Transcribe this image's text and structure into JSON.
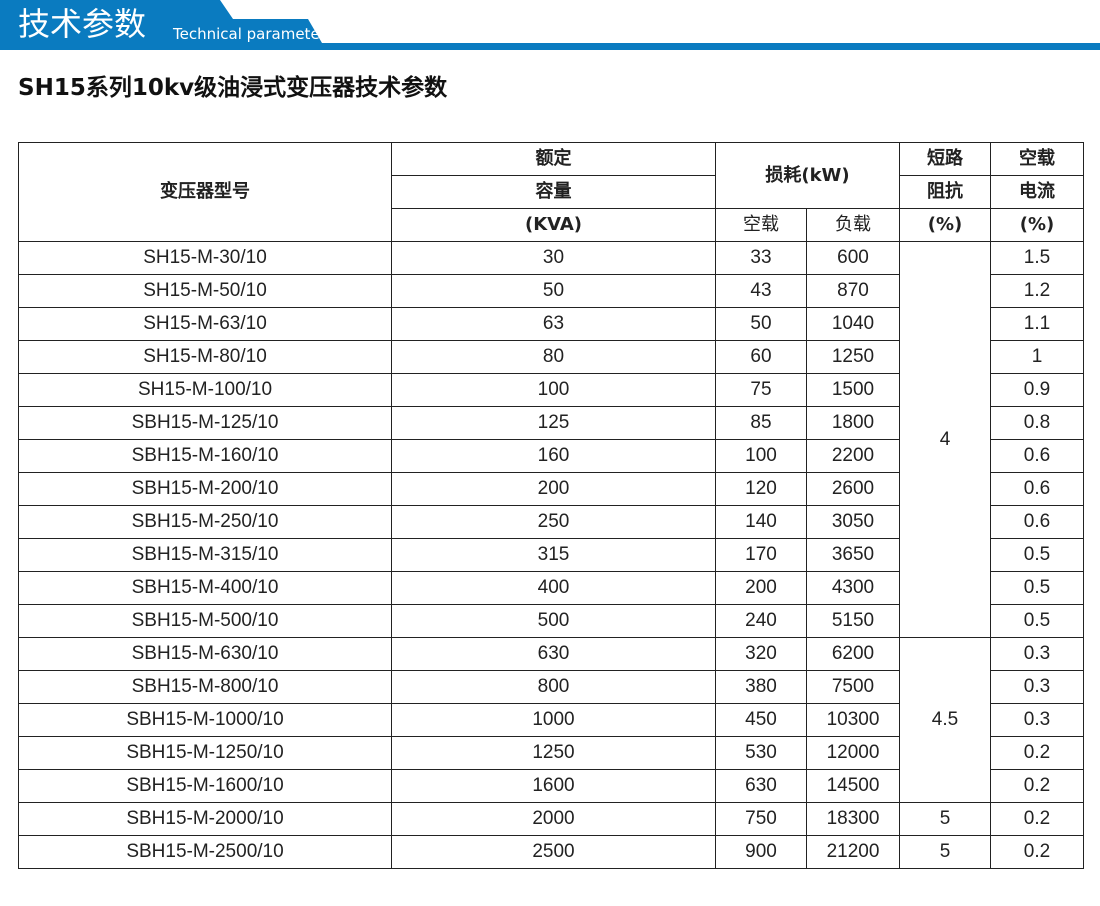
{
  "banner": {
    "title": "技术参数",
    "subtitle": "Technical parameter",
    "color": "#0a7bc0"
  },
  "doc_title": "SH15系列10kv级油浸式变压器技术参数",
  "table": {
    "headers": {
      "model": "变压器型号",
      "capacity_1": "额定",
      "capacity_2": "容量",
      "capacity_3": "(KVA)",
      "loss": "损耗(kW)",
      "loss_noload": "空载",
      "loss_load": "负载",
      "impedance_1": "短路",
      "impedance_2": "阻抗",
      "impedance_3": "(%)",
      "current_1": "空载",
      "current_2": "电流",
      "current_3": "(%)"
    },
    "rows": [
      [
        "SH15-M-30/10",
        "30",
        "33",
        "600",
        "1.5"
      ],
      [
        "SH15-M-50/10",
        "50",
        "43",
        "870",
        "1.2"
      ],
      [
        "SH15-M-63/10",
        "63",
        "50",
        "1040",
        "1.1"
      ],
      [
        "SH15-M-80/10",
        "80",
        "60",
        "1250",
        "1"
      ],
      [
        "SH15-M-100/10",
        "100",
        "75",
        "1500",
        "0.9"
      ],
      [
        "SBH15-M-125/10",
        "125",
        "85",
        "1800",
        "0.8"
      ],
      [
        "SBH15-M-160/10",
        "160",
        "100",
        "2200",
        "0.6"
      ],
      [
        "SBH15-M-200/10",
        "200",
        "120",
        "2600",
        "0.6"
      ],
      [
        "SBH15-M-250/10",
        "250",
        "140",
        "3050",
        "0.6"
      ],
      [
        "SBH15-M-315/10",
        "315",
        "170",
        "3650",
        "0.5"
      ],
      [
        "SBH15-M-400/10",
        "400",
        "200",
        "4300",
        "0.5"
      ],
      [
        "SBH15-M-500/10",
        "500",
        "240",
        "5150",
        "0.5"
      ],
      [
        "SBH15-M-630/10",
        "630",
        "320",
        "6200",
        "0.3"
      ],
      [
        "SBH15-M-800/10",
        "800",
        "380",
        "7500",
        "0.3"
      ],
      [
        "SBH15-M-1000/10",
        "1000",
        "450",
        "10300",
        "0.3"
      ],
      [
        "SBH15-M-1250/10",
        "1250",
        "530",
        "12000",
        "0.2"
      ],
      [
        "SBH15-M-1600/10",
        "1600",
        "630",
        "14500",
        "0.2"
      ],
      [
        "SBH15-M-2000/10",
        "2000",
        "750",
        "18300",
        "0.2"
      ],
      [
        "SBH15-M-2500/10",
        "2500",
        "900",
        "21200",
        "0.2"
      ]
    ],
    "impedance_groups": [
      {
        "value": "4",
        "span": 12
      },
      {
        "value": "4.5",
        "span": 5
      },
      {
        "value": "5",
        "span": 1
      },
      {
        "value": "5",
        "span": 1
      }
    ]
  }
}
